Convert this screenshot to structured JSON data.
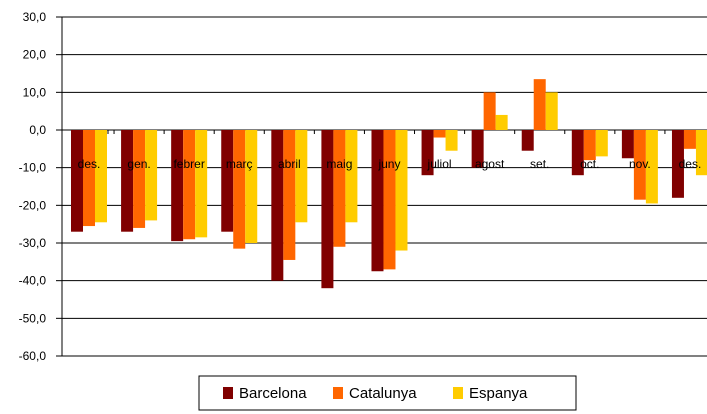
{
  "chart_data": {
    "type": "bar",
    "categories": [
      "des.",
      "gen.",
      "febrer",
      "març",
      "abril",
      "maig",
      "juny",
      "juliol",
      "agost",
      "set.",
      "oct.",
      "nov.",
      "des."
    ],
    "series": [
      {
        "name": "Barcelona",
        "color": "#800000",
        "values": [
          -27.0,
          -27.0,
          -29.5,
          -27.0,
          -40.0,
          -42.0,
          -37.5,
          -12.0,
          -10.0,
          -5.5,
          -12.0,
          -7.5,
          -18.0
        ]
      },
      {
        "name": "Catalunya",
        "color": "#FF6600",
        "values": [
          -25.5,
          -26.0,
          -29.0,
          -31.5,
          -34.5,
          -31.0,
          -37.0,
          -2.0,
          10.0,
          13.5,
          -8.0,
          -18.5,
          -5.0
        ]
      },
      {
        "name": "Espanya",
        "color": "#FFCC00",
        "values": [
          -24.5,
          -24.0,
          -28.5,
          -30.0,
          -24.5,
          -24.5,
          -32.0,
          -5.5,
          4.0,
          10.0,
          -7.0,
          -19.5,
          -12.0
        ]
      }
    ],
    "yticks": [
      "30,0",
      "20,0",
      "10,0",
      "0,0",
      "-10,0",
      "-20,0",
      "-30,0",
      "-40,0",
      "-50,0",
      "-60,0"
    ],
    "ylim": [
      -60,
      30
    ],
    "grid": true,
    "legend_position": "bottom"
  }
}
